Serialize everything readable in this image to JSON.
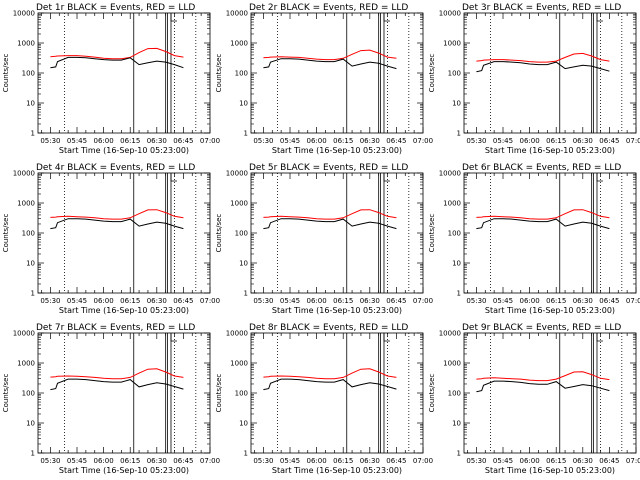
{
  "figure": {
    "ylabel": "Counts/sec",
    "xlabel": "Start Time (16-Sep-10 05:23:00)",
    "legend_text": "BLACK = Events, RED = LLD",
    "colors": {
      "events": "#000000",
      "lld": "#ff0000",
      "axes": "#000000",
      "background": "#ffffff"
    }
  },
  "chart_data": [
    {
      "type": "line",
      "title": "Det 1r BLACK = Events, RED = LLD",
      "xlabel": "Start Time (16-Sep-10 05:23:00)",
      "ylabel": "Counts/sec",
      "yscale": "log",
      "ylim": [
        1,
        10000
      ],
      "xlim": [
        "05:23",
        "07:00"
      ],
      "x_ticks": [
        "05:30",
        "05:45",
        "06:00",
        "06:15",
        "06:30",
        "06:45",
        "07:00"
      ],
      "y_ticks": [
        "1",
        "10",
        "100",
        "1000",
        "10000"
      ],
      "vlines_dotted": [
        "05:38",
        "06:40",
        "06:52"
      ],
      "vlines_solid": [
        "06:17",
        "06:35",
        "06:36",
        "06:38"
      ],
      "x": [
        "05:30",
        "05:33",
        "05:34",
        "05:40",
        "05:45",
        "05:50",
        "05:55",
        "06:00",
        "06:05",
        "06:10",
        "06:15",
        "06:20",
        "06:25",
        "06:30",
        "06:35",
        "06:40",
        "06:45"
      ],
      "series": [
        {
          "name": "LLD",
          "color": "red",
          "values": [
            350,
            360,
            370,
            380,
            380,
            360,
            340,
            310,
            300,
            300,
            330,
            480,
            650,
            660,
            520,
            380,
            340
          ]
        },
        {
          "name": "Events",
          "color": "black",
          "values": [
            150,
            160,
            240,
            330,
            330,
            320,
            300,
            280,
            270,
            270,
            320,
            190,
            220,
            250,
            230,
            190,
            150
          ]
        }
      ]
    },
    {
      "type": "line",
      "title": "Det 2r BLACK = Events, RED = LLD",
      "xlabel": "Start Time (16-Sep-10 05:23:00)",
      "ylabel": "Counts/sec",
      "yscale": "log",
      "ylim": [
        1,
        10000
      ],
      "xlim": [
        "05:23",
        "07:00"
      ],
      "x_ticks": [
        "05:30",
        "05:45",
        "06:00",
        "06:15",
        "06:30",
        "06:45",
        "07:00"
      ],
      "y_ticks": [
        "1",
        "10",
        "100",
        "1000",
        "10000"
      ],
      "vlines_dotted": [
        "05:38",
        "06:40",
        "06:52"
      ],
      "vlines_solid": [
        "06:17",
        "06:35",
        "06:36",
        "06:38"
      ],
      "x": [
        "05:30",
        "05:33",
        "05:34",
        "05:40",
        "05:45",
        "05:50",
        "05:55",
        "06:00",
        "06:05",
        "06:10",
        "06:15",
        "06:20",
        "06:25",
        "06:30",
        "06:35",
        "06:40",
        "06:45"
      ],
      "series": [
        {
          "name": "LLD",
          "color": "red",
          "values": [
            320,
            330,
            340,
            350,
            340,
            330,
            310,
            290,
            280,
            280,
            310,
            420,
            560,
            580,
            460,
            340,
            310
          ]
        },
        {
          "name": "Events",
          "color": "black",
          "values": [
            150,
            160,
            230,
            300,
            300,
            290,
            270,
            250,
            240,
            240,
            290,
            170,
            200,
            230,
            210,
            170,
            140
          ]
        }
      ]
    },
    {
      "type": "line",
      "title": "Det 3r BLACK = Events, RED = LLD",
      "xlabel": "Start Time (16-Sep-10 05:23:00)",
      "ylabel": "Counts/sec",
      "yscale": "log",
      "ylim": [
        1,
        10000
      ],
      "xlim": [
        "05:23",
        "07:00"
      ],
      "x_ticks": [
        "05:30",
        "05:45",
        "06:00",
        "06:15",
        "06:30",
        "06:45",
        "07:00"
      ],
      "y_ticks": [
        "1",
        "10",
        "100",
        "1000",
        "10000"
      ],
      "vlines_dotted": [
        "05:38",
        "06:40",
        "06:52"
      ],
      "vlines_solid": [
        "06:17",
        "06:35",
        "06:36",
        "06:38"
      ],
      "x": [
        "05:30",
        "05:33",
        "05:34",
        "05:40",
        "05:45",
        "05:50",
        "05:55",
        "06:00",
        "06:05",
        "06:10",
        "06:15",
        "06:20",
        "06:25",
        "06:30",
        "06:35",
        "06:40",
        "06:45"
      ],
      "series": [
        {
          "name": "LLD",
          "color": "red",
          "values": [
            250,
            260,
            270,
            280,
            280,
            270,
            260,
            240,
            230,
            230,
            250,
            330,
            430,
            450,
            370,
            280,
            250
          ]
        },
        {
          "name": "Events",
          "color": "black",
          "values": [
            110,
            120,
            180,
            240,
            240,
            230,
            220,
            200,
            190,
            190,
            230,
            140,
            160,
            180,
            170,
            140,
            115
          ]
        }
      ]
    },
    {
      "type": "line",
      "title": "Det 4r BLACK = Events, RED = LLD",
      "xlabel": "Start Time (16-Sep-10 05:23:00)",
      "ylabel": "Counts/sec",
      "yscale": "log",
      "ylim": [
        1,
        10000
      ],
      "xlim": [
        "05:23",
        "07:00"
      ],
      "x_ticks": [
        "05:30",
        "05:45",
        "06:00",
        "06:15",
        "06:30",
        "06:45",
        "07:00"
      ],
      "y_ticks": [
        "1",
        "10",
        "100",
        "1000",
        "10000"
      ],
      "vlines_dotted": [
        "05:38",
        "06:40",
        "06:52"
      ],
      "vlines_solid": [
        "06:17",
        "06:35",
        "06:36",
        "06:38"
      ],
      "x": [
        "05:30",
        "05:33",
        "05:34",
        "05:40",
        "05:45",
        "05:50",
        "05:55",
        "06:00",
        "06:05",
        "06:10",
        "06:15",
        "06:20",
        "06:25",
        "06:30",
        "06:35",
        "06:40",
        "06:45"
      ],
      "series": [
        {
          "name": "LLD",
          "color": "red",
          "values": [
            330,
            340,
            350,
            360,
            350,
            340,
            320,
            300,
            290,
            290,
            320,
            440,
            590,
            600,
            480,
            360,
            320
          ]
        },
        {
          "name": "Events",
          "color": "black",
          "values": [
            140,
            150,
            220,
            300,
            300,
            290,
            270,
            250,
            240,
            240,
            290,
            170,
            200,
            230,
            210,
            170,
            140
          ]
        }
      ]
    },
    {
      "type": "line",
      "title": "Det 5r BLACK = Events, RED = LLD",
      "xlabel": "Start Time (16-Sep-10 05:23:00)",
      "ylabel": "Counts/sec",
      "yscale": "log",
      "ylim": [
        1,
        10000
      ],
      "xlim": [
        "05:23",
        "07:00"
      ],
      "x_ticks": [
        "05:30",
        "05:45",
        "06:00",
        "06:15",
        "06:30",
        "06:45",
        "07:00"
      ],
      "y_ticks": [
        "1",
        "10",
        "100",
        "1000",
        "10000"
      ],
      "vlines_dotted": [
        "05:38",
        "06:40",
        "06:52"
      ],
      "vlines_solid": [
        "06:17",
        "06:35",
        "06:36",
        "06:38"
      ],
      "x": [
        "05:30",
        "05:33",
        "05:34",
        "05:40",
        "05:45",
        "05:50",
        "05:55",
        "06:00",
        "06:05",
        "06:10",
        "06:15",
        "06:20",
        "06:25",
        "06:30",
        "06:35",
        "06:40",
        "06:45"
      ],
      "series": [
        {
          "name": "LLD",
          "color": "red",
          "values": [
            330,
            340,
            350,
            360,
            350,
            340,
            320,
            300,
            290,
            290,
            320,
            440,
            590,
            600,
            480,
            360,
            320
          ]
        },
        {
          "name": "Events",
          "color": "black",
          "values": [
            140,
            150,
            220,
            300,
            300,
            290,
            270,
            250,
            240,
            240,
            290,
            170,
            200,
            230,
            210,
            170,
            140
          ]
        }
      ]
    },
    {
      "type": "line",
      "title": "Det 6r BLACK = Events, RED = LLD",
      "xlabel": "Start Time (16-Sep-10 05:23:00)",
      "ylabel": "Counts/sec",
      "yscale": "log",
      "ylim": [
        1,
        10000
      ],
      "xlim": [
        "05:23",
        "07:00"
      ],
      "x_ticks": [
        "05:30",
        "05:45",
        "06:00",
        "06:15",
        "06:30",
        "06:45",
        "07:00"
      ],
      "y_ticks": [
        "1",
        "10",
        "100",
        "1000",
        "10000"
      ],
      "vlines_dotted": [
        "05:38",
        "06:40",
        "06:52"
      ],
      "vlines_solid": [
        "06:17",
        "06:35",
        "06:36",
        "06:38"
      ],
      "x": [
        "05:30",
        "05:33",
        "05:34",
        "05:40",
        "05:45",
        "05:50",
        "05:55",
        "06:00",
        "06:05",
        "06:10",
        "06:15",
        "06:20",
        "06:25",
        "06:30",
        "06:35",
        "06:40",
        "06:45"
      ],
      "series": [
        {
          "name": "LLD",
          "color": "red",
          "values": [
            330,
            340,
            350,
            360,
            350,
            340,
            320,
            300,
            290,
            290,
            320,
            440,
            590,
            600,
            480,
            360,
            320
          ]
        },
        {
          "name": "Events",
          "color": "black",
          "values": [
            140,
            150,
            220,
            300,
            300,
            290,
            270,
            250,
            240,
            240,
            290,
            170,
            200,
            230,
            210,
            170,
            140
          ]
        }
      ]
    },
    {
      "type": "line",
      "title": "Det 7r BLACK = Events, RED = LLD",
      "xlabel": "Start Time (16-Sep-10 05:23:00)",
      "ylabel": "Counts/sec",
      "yscale": "log",
      "ylim": [
        1,
        10000
      ],
      "xlim": [
        "05:23",
        "07:00"
      ],
      "x_ticks": [
        "05:30",
        "05:45",
        "06:00",
        "06:15",
        "06:30",
        "06:45",
        "07:00"
      ],
      "y_ticks": [
        "1",
        "10",
        "100",
        "1000",
        "10000"
      ],
      "vlines_dotted": [
        "05:38",
        "06:40",
        "06:52"
      ],
      "vlines_solid": [
        "06:17",
        "06:35",
        "06:36",
        "06:38"
      ],
      "x": [
        "05:30",
        "05:33",
        "05:34",
        "05:40",
        "05:45",
        "05:50",
        "05:55",
        "06:00",
        "06:05",
        "06:10",
        "06:15",
        "06:20",
        "06:25",
        "06:30",
        "06:35",
        "06:40",
        "06:45"
      ],
      "series": [
        {
          "name": "LLD",
          "color": "red",
          "values": [
            340,
            350,
            360,
            370,
            360,
            350,
            330,
            310,
            300,
            300,
            330,
            460,
            620,
            640,
            500,
            370,
            330
          ]
        },
        {
          "name": "Events",
          "color": "black",
          "values": [
            130,
            140,
            210,
            290,
            290,
            280,
            260,
            240,
            230,
            230,
            280,
            160,
            190,
            220,
            200,
            165,
            135
          ]
        }
      ]
    },
    {
      "type": "line",
      "title": "Det 8r BLACK = Events, RED = LLD",
      "xlabel": "Start Time (16-Sep-10 05:23:00)",
      "ylabel": "Counts/sec",
      "yscale": "log",
      "ylim": [
        1,
        10000
      ],
      "xlim": [
        "05:23",
        "07:00"
      ],
      "x_ticks": [
        "05:30",
        "05:45",
        "06:00",
        "06:15",
        "06:30",
        "06:45",
        "07:00"
      ],
      "y_ticks": [
        "1",
        "10",
        "100",
        "1000",
        "10000"
      ],
      "vlines_dotted": [
        "05:38",
        "06:40",
        "06:52"
      ],
      "vlines_solid": [
        "06:17",
        "06:35",
        "06:36",
        "06:38"
      ],
      "x": [
        "05:30",
        "05:33",
        "05:34",
        "05:40",
        "05:45",
        "05:50",
        "05:55",
        "06:00",
        "06:05",
        "06:10",
        "06:15",
        "06:20",
        "06:25",
        "06:30",
        "06:35",
        "06:40",
        "06:45"
      ],
      "series": [
        {
          "name": "LLD",
          "color": "red",
          "values": [
            340,
            350,
            360,
            370,
            360,
            350,
            330,
            310,
            300,
            300,
            330,
            460,
            620,
            640,
            500,
            370,
            330
          ]
        },
        {
          "name": "Events",
          "color": "black",
          "values": [
            130,
            140,
            210,
            290,
            290,
            280,
            260,
            240,
            230,
            230,
            280,
            160,
            190,
            220,
            200,
            165,
            135
          ]
        }
      ]
    },
    {
      "type": "line",
      "title": "Det 9r BLACK = Events, RED = LLD",
      "xlabel": "Start Time (16-Sep-10 05:23:00)",
      "ylabel": "Counts/sec",
      "yscale": "log",
      "ylim": [
        1,
        10000
      ],
      "xlim": [
        "05:23",
        "07:00"
      ],
      "x_ticks": [
        "05:30",
        "05:45",
        "06:00",
        "06:15",
        "06:30",
        "06:45",
        "07:00"
      ],
      "y_ticks": [
        "1",
        "10",
        "100",
        "1000",
        "10000"
      ],
      "vlines_dotted": [
        "05:38",
        "06:40",
        "06:52"
      ],
      "vlines_solid": [
        "06:17",
        "06:35",
        "06:36",
        "06:38"
      ],
      "x": [
        "05:30",
        "05:33",
        "05:34",
        "05:40",
        "05:45",
        "05:50",
        "05:55",
        "06:00",
        "06:05",
        "06:10",
        "06:15",
        "06:20",
        "06:25",
        "06:30",
        "06:35",
        "06:40",
        "06:45"
      ],
      "series": [
        {
          "name": "LLD",
          "color": "red",
          "values": [
            290,
            300,
            310,
            320,
            310,
            300,
            290,
            270,
            260,
            260,
            290,
            380,
            500,
            510,
            410,
            310,
            280
          ]
        },
        {
          "name": "Events",
          "color": "black",
          "values": [
            110,
            120,
            180,
            250,
            250,
            240,
            225,
            205,
            195,
            195,
            240,
            145,
            165,
            190,
            175,
            145,
            120
          ]
        }
      ]
    }
  ]
}
